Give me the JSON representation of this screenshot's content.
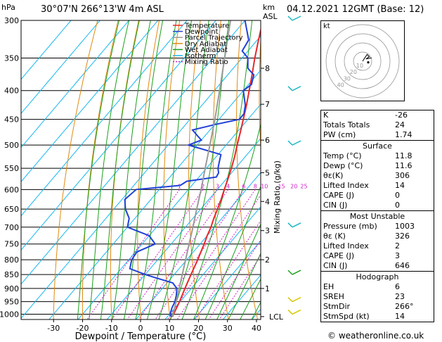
{
  "header": {
    "pressure_unit": "hPa",
    "site": "30°07'N  266°13'W  4m  ASL",
    "height_unit_1": "km",
    "height_unit_2": "ASL",
    "date": "04.12.2021  12GMT  (Base: 12)"
  },
  "legend": [
    {
      "name": "Temperature",
      "color": "#e8262b"
    },
    {
      "name": "Dewpoint",
      "color": "#2040d8"
    },
    {
      "name": "Parcel Trajectory",
      "color": "#9a9a9a"
    },
    {
      "name": "Dry Adiabat",
      "color": "#e08a10"
    },
    {
      "name": "Wet Adiabat",
      "color": "#1aa01a"
    },
    {
      "name": "Isotherm",
      "color": "#18b8f0"
    },
    {
      "name": "Mixing Ratio",
      "color": "#d020c8"
    }
  ],
  "chart_data": {
    "type": "line",
    "xlabel": "Dewpoint / Temperature (°C)",
    "ylabel": "Mixing Ratio (g/kg)",
    "x_ticks": [
      -30,
      -20,
      -10,
      0,
      10,
      20,
      30,
      40
    ],
    "pressure_levels": [
      300,
      350,
      400,
      450,
      500,
      550,
      600,
      650,
      700,
      750,
      800,
      850,
      900,
      950,
      1000
    ],
    "height_km_ticks": [
      {
        "label": "8",
        "p": 365
      },
      {
        "label": "7",
        "p": 423
      },
      {
        "label": "6",
        "p": 490
      },
      {
        "label": "5",
        "p": 560
      },
      {
        "label": "4",
        "p": 630
      },
      {
        "label": "3",
        "p": 710
      },
      {
        "label": "2",
        "p": 800
      },
      {
        "label": "1",
        "p": 900
      },
      {
        "label": "LCL",
        "p": 1010
      }
    ],
    "mixing_ratio_labels": [
      "1",
      "2",
      "3",
      "4",
      "6",
      "8",
      "10",
      "15",
      "20",
      "25"
    ],
    "series": [
      {
        "name": "Temperature",
        "p": [
          1012,
          1000,
          975,
          950,
          925,
          900,
          875,
          850,
          825,
          800,
          775,
          750,
          725,
          700,
          675,
          650,
          625,
          600,
          575,
          550,
          525,
          500,
          475,
          450,
          425,
          400,
          375,
          350,
          325,
          300
        ],
        "t": [
          11.8,
          11.4,
          10.6,
          9.8,
          8.8,
          7.8,
          6.8,
          5.8,
          4.8,
          3.8,
          2.6,
          1.4,
          0.0,
          -1.2,
          -2.8,
          -4.2,
          -5.8,
          -7.6,
          -9.4,
          -11.4,
          -13.6,
          -16.2,
          -18.8,
          -21.6,
          -24.6,
          -28.0,
          -31.6,
          -35.6,
          -39.6,
          -43.8
        ]
      },
      {
        "name": "Dewpoint",
        "p": [
          1012,
          1000,
          975,
          950,
          925,
          900,
          880,
          860,
          850,
          830,
          800,
          775,
          750,
          725,
          700,
          675,
          650,
          625,
          600,
          590,
          580,
          570,
          560,
          550,
          540,
          530,
          520,
          500,
          490,
          480,
          470,
          460,
          450,
          440,
          425,
          400,
          390,
          375,
          365,
          350,
          340,
          325,
          300
        ],
        "t": [
          11.6,
          10.2,
          9.0,
          8.2,
          6.8,
          5.0,
          2.0,
          -6.0,
          -10.0,
          -17.0,
          -19.0,
          -19.5,
          -15.5,
          -20.0,
          -30.0,
          -32.0,
          -36.0,
          -39.0,
          -38.0,
          -24.0,
          -23.0,
          -14.0,
          -14.5,
          -16.0,
          -17.0,
          -18.0,
          -19.0,
          -33.0,
          -30.0,
          -33.0,
          -36.0,
          -30.0,
          -23.0,
          -23.0,
          -25.0,
          -30.0,
          -29.0,
          -31.0,
          -35.0,
          -38.0,
          -42.0,
          -43.0,
          -50.0
        ]
      },
      {
        "name": "Parcel Trajectory",
        "p": [
          1012,
          950,
          900,
          850,
          800,
          750,
          700,
          650,
          600,
          550,
          500,
          450,
          400,
          350,
          300
        ],
        "t": [
          11.8,
          8.6,
          5.8,
          2.8,
          -0.4,
          -3.8,
          -7.4,
          -11.4,
          -15.6,
          -20.4,
          -25.6,
          -31.4,
          -38.2,
          -46.0,
          -55.0
        ]
      }
    ]
  },
  "hodograph": {
    "unit": "kt",
    "ring_labels": [
      "40",
      "30",
      "20",
      "10"
    ],
    "trace": [
      [
        0,
        0
      ],
      [
        2,
        3
      ],
      [
        4,
        6
      ],
      [
        6,
        4
      ],
      [
        3,
        2
      ],
      [
        8,
        3
      ]
    ],
    "storm_motion": [
      5,
      -1
    ]
  },
  "stability": [
    {
      "label": "K",
      "value": "-26"
    },
    {
      "label": "Totals Totals",
      "value": "24"
    },
    {
      "label": "PW (cm)",
      "value": "1.74"
    }
  ],
  "surface": {
    "title": "Surface",
    "rows": [
      {
        "label": "Temp (°C)",
        "value": "11.8"
      },
      {
        "label": "Dewp (°C)",
        "value": "11.6"
      },
      {
        "label": "θε(K)",
        "value": "306"
      },
      {
        "label": "Lifted Index",
        "value": "14"
      },
      {
        "label": "CAPE (J)",
        "value": "0"
      },
      {
        "label": "CIN (J)",
        "value": "0"
      }
    ]
  },
  "most_unstable": {
    "title": "Most Unstable",
    "rows": [
      {
        "label": "Pressure (mb)",
        "value": "1003"
      },
      {
        "label": "θε (K)",
        "value": "326"
      },
      {
        "label": "Lifted Index",
        "value": "2"
      },
      {
        "label": "CAPE (J)",
        "value": "3"
      },
      {
        "label": "CIN (J)",
        "value": "646"
      }
    ]
  },
  "hodograph_table": {
    "title": "Hodograph",
    "rows": [
      {
        "label": "EH",
        "value": "6"
      },
      {
        "label": "SREH",
        "value": "23"
      },
      {
        "label": "StmDir",
        "value": "266°"
      },
      {
        "label": "StmSpd (kt)",
        "value": "14"
      }
    ]
  },
  "copyright": "© weatheronline.co.uk",
  "wind_barb_levels": [
    300,
    400,
    500,
    700,
    850,
    950,
    1000
  ]
}
